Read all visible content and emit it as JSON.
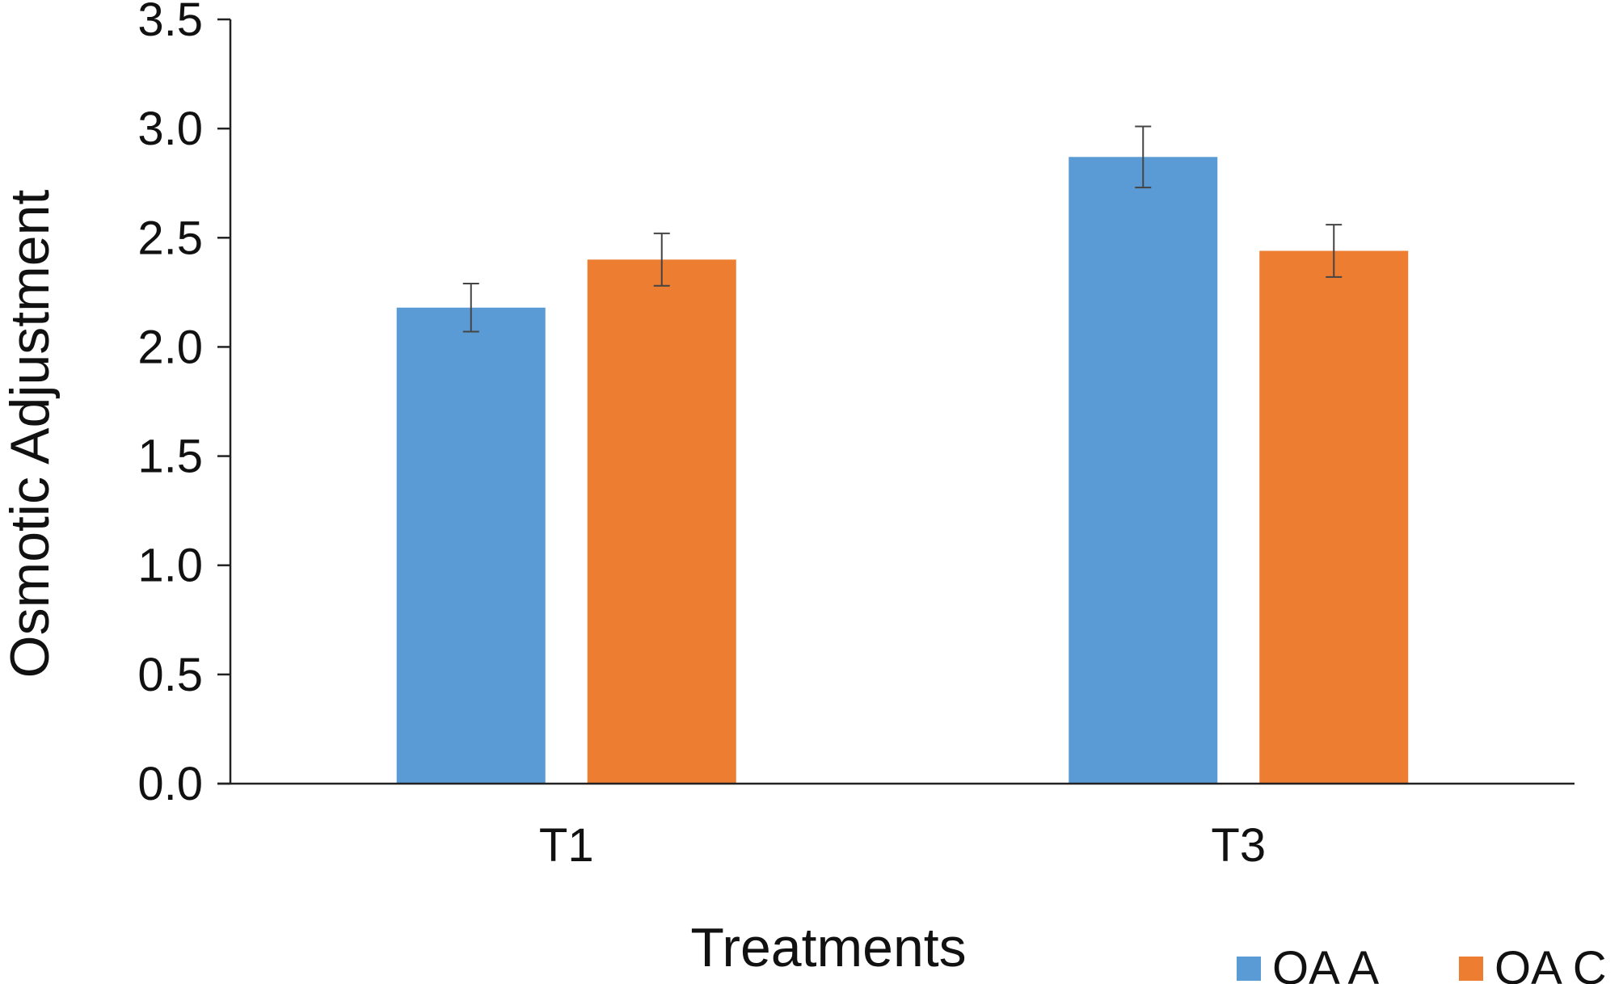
{
  "chart_data": {
    "type": "bar",
    "title": "",
    "xlabel": "Treatments",
    "ylabel": "Osmotic Adjustment",
    "categories": [
      "T1",
      "T3"
    ],
    "ylim": [
      0,
      3.5
    ],
    "yticks": [
      0.0,
      0.5,
      1.0,
      1.5,
      2.0,
      2.5,
      3.0,
      3.5
    ],
    "grid": false,
    "legend_position": "bottom-right",
    "series": [
      {
        "name": "OA A",
        "color": "#5B9BD5",
        "values": [
          2.18,
          2.87
        ],
        "errors": [
          0.11,
          0.14
        ]
      },
      {
        "name": "OA C",
        "color": "#ED7D31",
        "values": [
          2.4,
          2.44
        ],
        "errors": [
          0.12,
          0.12
        ]
      }
    ]
  }
}
